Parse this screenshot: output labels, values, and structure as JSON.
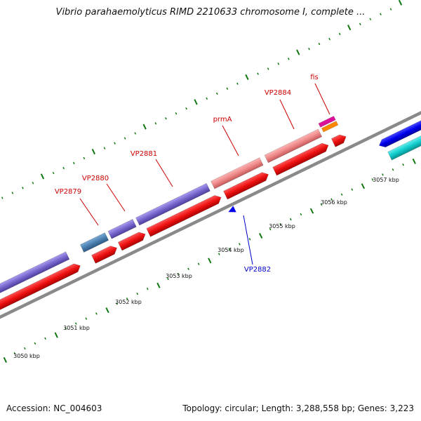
{
  "title": "Vibrio parahaemolyticus RIMD 2210633 chromosome I, complete ...",
  "footer": {
    "accession": "Accession: NC_004603",
    "summary": "Topology: circular; Length: 3,288,558 bp; Genes: 3,223"
  },
  "ruler": {
    "labels": [
      "3050 kbp",
      "3051 kbp",
      "3052 kbp",
      "3053 kbp",
      "3054 kbp",
      "3055 kbp",
      "3056 kbp",
      "3057 kbp"
    ]
  },
  "gene_labels": [
    {
      "text": "VP2879",
      "color": "#cc0000"
    },
    {
      "text": "VP2880",
      "color": "#cc0000"
    },
    {
      "text": "VP2881",
      "color": "#cc0000"
    },
    {
      "text": "prmA",
      "color": "#cc0000"
    },
    {
      "text": "VP2884",
      "color": "#cc0000"
    },
    {
      "text": "fis",
      "color": "#cc0000"
    },
    {
      "text": "VP2882",
      "color": "#0000cc"
    }
  ],
  "colors": {
    "cds_red": "#ee1111",
    "gene_purple": "#7766cc",
    "gene_steelblue": "#4a7fb0",
    "gene_salmon": "#ee8888",
    "gene_magenta": "#dd1199",
    "gene_orange": "#ff8800",
    "reverse_blue": "#0000ee",
    "reverse_cyan": "#11cccc",
    "backbone": "#888888",
    "ruler_ticks": "#117711"
  }
}
